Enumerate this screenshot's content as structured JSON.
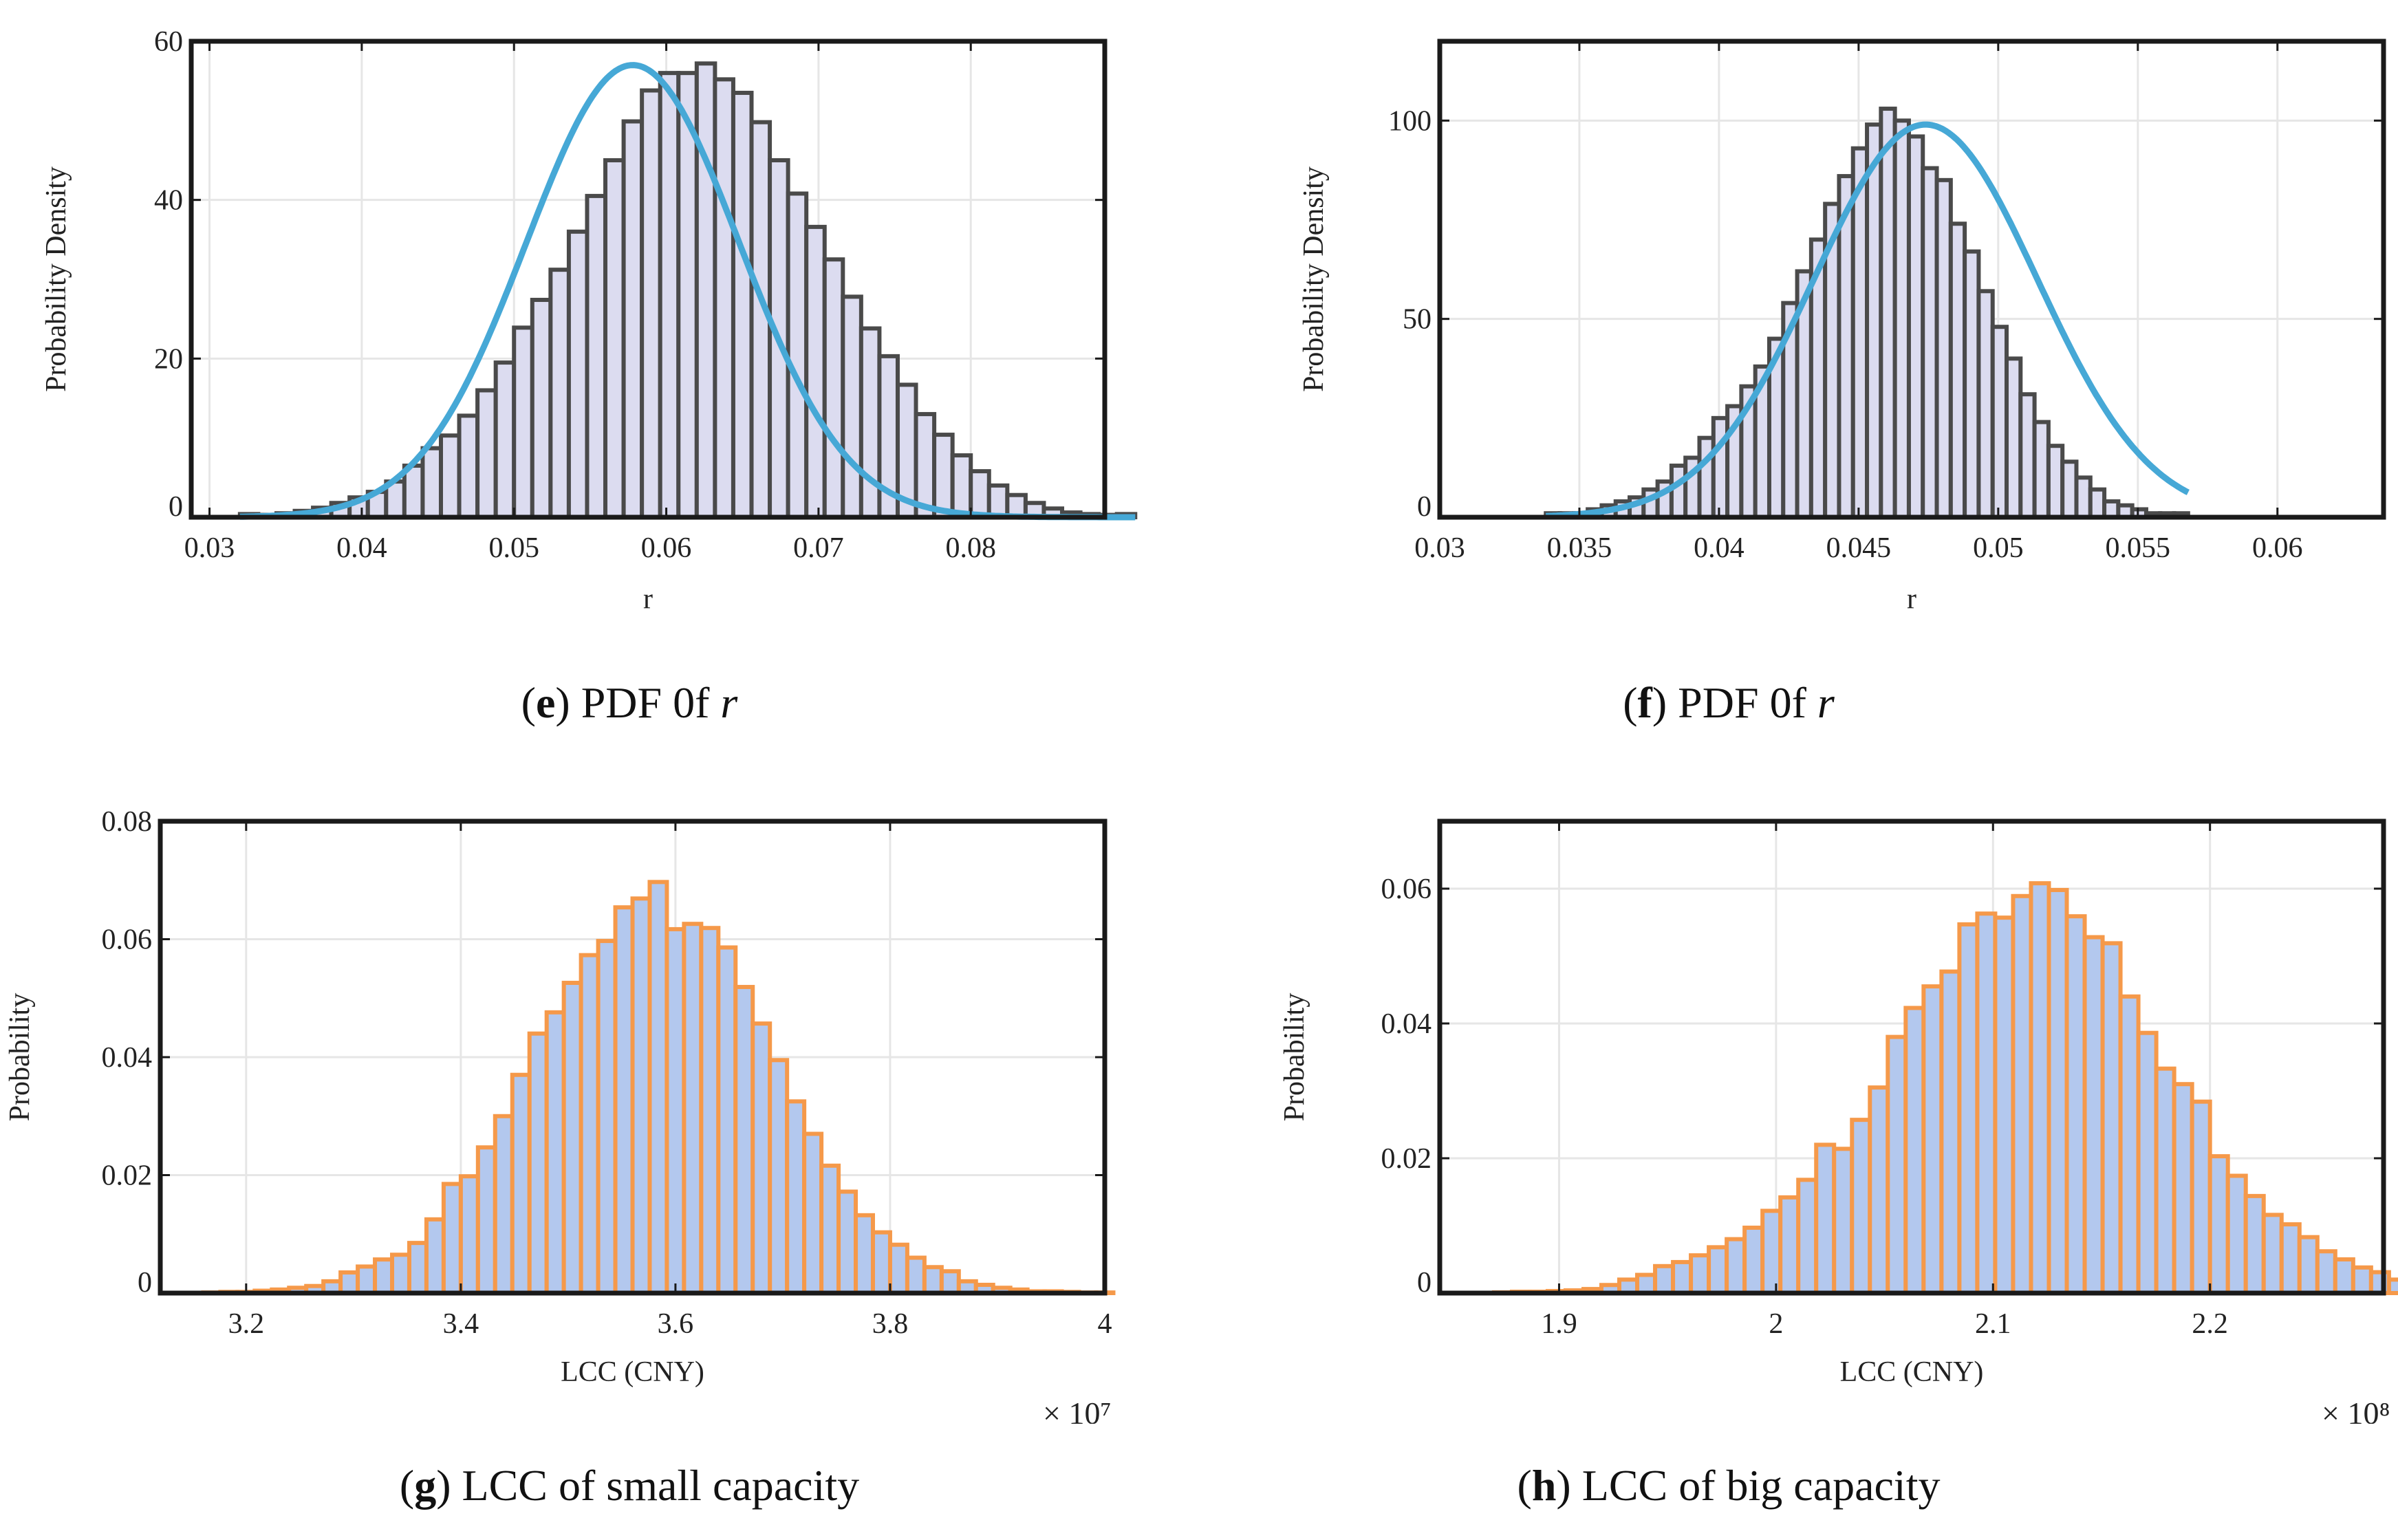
{
  "figure": {
    "captions": [
      {
        "letter": "e",
        "text": "PDF 0f",
        "italic": "r"
      },
      {
        "letter": "f",
        "text": "PDF 0f",
        "italic": "r"
      },
      {
        "letter": "g",
        "text": "LCC of small capacity",
        "italic": ""
      },
      {
        "letter": "h",
        "text": "LCC of big capacity",
        "italic": ""
      }
    ]
  },
  "colors": {
    "hist_e_fill": "#dcdcf0",
    "hist_e_edge": "#4a4a4a",
    "fit_curve": "#46a8d6",
    "hist_g_fill": "#b3c8ee",
    "hist_g_edge": "#f5994a",
    "grid": "#e6e6e6",
    "axes": "#1a1a1a"
  },
  "chart_data": [
    {
      "id": "e",
      "type": "bar",
      "subtype": "histogram-with-fit",
      "xlabel": "r",
      "ylabel": "Probability Density",
      "xlim": [
        0.0288,
        0.0888
      ],
      "ylim": [
        0,
        60
      ],
      "xticks": [
        0.03,
        0.04,
        0.05,
        0.06,
        0.07,
        0.08
      ],
      "yticks": [
        0,
        20,
        40,
        60
      ],
      "grid": true,
      "multiplier": "",
      "bin_start": 0.032,
      "bin_width": 0.0012,
      "values": [
        0.4,
        0.3,
        0.5,
        0.8,
        1.2,
        1.8,
        2.5,
        3.2,
        4.5,
        6.5,
        8.7,
        10.3,
        12.8,
        16.0,
        19.5,
        23.9,
        27.4,
        31.2,
        36.0,
        40.5,
        45.0,
        49.9,
        53.8,
        56.0,
        56.0,
        57.2,
        55.2,
        53.5,
        49.8,
        45.0,
        40.8,
        36.6,
        32.5,
        27.8,
        23.8,
        20.3,
        16.7,
        13.0,
        10.4,
        7.8,
        5.8,
        4.0,
        2.8,
        1.8,
        1.1,
        0.6,
        0.4,
        0.3,
        0.4
      ],
      "fit": {
        "mu": 0.0578,
        "sigma": 0.007,
        "peak": 57.0
      }
    },
    {
      "id": "f",
      "type": "bar",
      "subtype": "histogram-with-fit",
      "xlabel": "r",
      "ylabel": "Probability Density",
      "xlim": [
        0.03,
        0.0638
      ],
      "ylim": [
        0,
        120
      ],
      "xticks": [
        0.03,
        0.035,
        0.04,
        0.045,
        0.05,
        0.055,
        0.06
      ],
      "yticks": [
        0,
        50,
        100
      ],
      "grid": true,
      "multiplier": "",
      "bin_start": 0.0338,
      "bin_width": 0.0005,
      "values": [
        1,
        1,
        1,
        2,
        3,
        4,
        5,
        7,
        9,
        13,
        15,
        20,
        25,
        28,
        33,
        38,
        45,
        54,
        62,
        70,
        79,
        86,
        93,
        99,
        103,
        100,
        96,
        88,
        85,
        74,
        67,
        57,
        48,
        40,
        31,
        24,
        18,
        14,
        10,
        7,
        4,
        3,
        2,
        1,
        1,
        1
      ],
      "fit": {
        "mu": 0.0474,
        "sigma": 0.004,
        "peak": 99.0
      }
    },
    {
      "id": "g",
      "type": "bar",
      "subtype": "histogram",
      "xlabel": "LCC (CNY)",
      "ylabel": "Probability",
      "xlim": [
        3.12,
        4.0
      ],
      "ylim": [
        0,
        0.08
      ],
      "xticks": [
        3.2,
        3.4,
        3.6,
        3.8,
        4.0
      ],
      "yticks": [
        0,
        0.02,
        0.04,
        0.06,
        0.08
      ],
      "ytick_labels": [
        "0",
        "0.02",
        "0.04",
        "0.06",
        "0.08"
      ],
      "xtick_labels": [
        "3.2",
        "3.4",
        "3.6",
        "3.8",
        "4"
      ],
      "grid": true,
      "multiplier": "× 10⁷",
      "bin_start": 3.16,
      "bin_width": 0.016,
      "values": [
        0.0001,
        0.0002,
        0.0002,
        0.0004,
        0.0006,
        0.0009,
        0.0012,
        0.002,
        0.0035,
        0.0045,
        0.0057,
        0.0065,
        0.0085,
        0.0125,
        0.0185,
        0.0198,
        0.0247,
        0.03,
        0.037,
        0.044,
        0.0476,
        0.0526,
        0.0573,
        0.0597,
        0.0654,
        0.0669,
        0.0697,
        0.0617,
        0.0626,
        0.0619,
        0.0586,
        0.0519,
        0.0457,
        0.0395,
        0.0325,
        0.027,
        0.0216,
        0.0172,
        0.0132,
        0.0103,
        0.0082,
        0.006,
        0.0044,
        0.0037,
        0.002,
        0.0014,
        0.0009,
        0.0006,
        0.0003,
        0.0003,
        0.0002,
        0.0001,
        0.0001
      ],
      "fit": null
    },
    {
      "id": "h",
      "type": "bar",
      "subtype": "histogram",
      "xlabel": "LCC (CNY)",
      "ylabel": "Probability",
      "xlim": [
        1.845,
        2.28
      ],
      "ylim": [
        0,
        0.07
      ],
      "xticks": [
        1.9,
        2.0,
        2.1,
        2.2
      ],
      "yticks": [
        0,
        0.02,
        0.04,
        0.06
      ],
      "ytick_labels": [
        "0",
        "0.02",
        "0.04",
        "0.06"
      ],
      "xtick_labels": [
        "1.9",
        "2",
        "2.1",
        "2.2"
      ],
      "grid": true,
      "multiplier": "× 10⁸",
      "bin_start": 1.87,
      "bin_width": 0.00825,
      "values": [
        0.0001,
        0.0002,
        0.0002,
        0.0003,
        0.0004,
        0.0006,
        0.0012,
        0.002,
        0.0027,
        0.004,
        0.0046,
        0.0056,
        0.0068,
        0.008,
        0.0097,
        0.0122,
        0.0142,
        0.0168,
        0.022,
        0.0214,
        0.0257,
        0.0305,
        0.038,
        0.0423,
        0.0455,
        0.0477,
        0.0547,
        0.0563,
        0.0557,
        0.0589,
        0.0608,
        0.0598,
        0.0559,
        0.0528,
        0.0519,
        0.044,
        0.0386,
        0.0333,
        0.031,
        0.0284,
        0.0203,
        0.0174,
        0.0144,
        0.0116,
        0.0102,
        0.0083,
        0.0062,
        0.005,
        0.0038,
        0.0031,
        0.002,
        0.0013,
        0.0008,
        0.0005,
        0.0003,
        0.0001,
        0.0001
      ],
      "fit": null
    }
  ]
}
